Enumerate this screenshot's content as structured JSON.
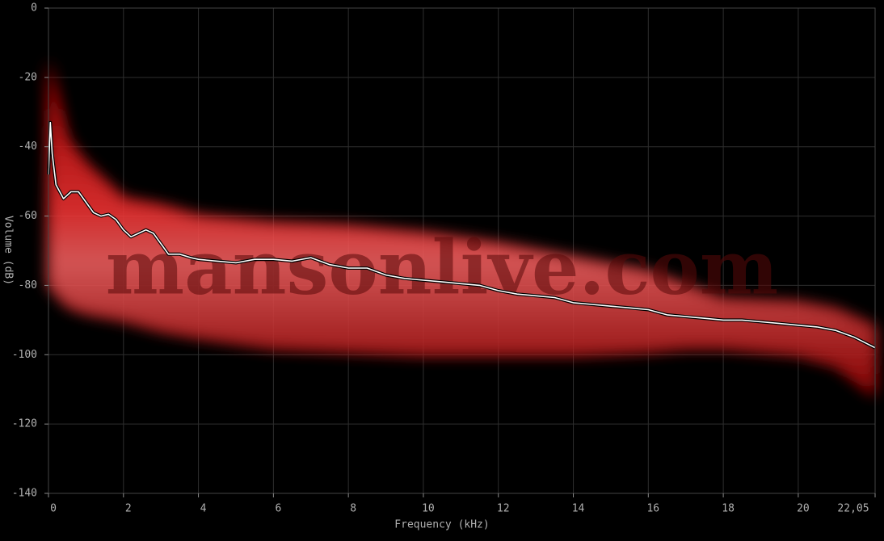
{
  "chart_data": {
    "type": "line",
    "x_label": "Frequency (kHz)",
    "y_label": "Volume (dB)",
    "annotation": "mansonlive.com",
    "xlim": [
      0,
      22.05
    ],
    "ylim": [
      -140,
      0
    ],
    "xticks": [
      0,
      2,
      4,
      6,
      8,
      10,
      12,
      14,
      16,
      18,
      20,
      {
        "value": 22.05,
        "label": "22,05"
      }
    ],
    "yticks": [
      0,
      -20,
      -40,
      -60,
      -80,
      -100,
      -120,
      -140
    ],
    "grid": true,
    "band": {
      "color": "#d00000",
      "x": [
        0,
        0.5,
        1,
        2,
        3,
        4,
        6,
        8,
        10,
        12,
        14,
        16,
        17,
        18,
        20,
        21,
        22.05
      ],
      "upper": [
        -15,
        -38,
        -45,
        -55,
        -57,
        -60,
        -62,
        -63,
        -65,
        -68,
        -72,
        -76,
        -80,
        -84,
        -85,
        -87,
        -92
      ],
      "lower": [
        -80,
        -86,
        -88,
        -90,
        -93,
        -95,
        -98,
        -99,
        -100,
        -100,
        -100,
        -99,
        -98,
        -98,
        -100,
        -103,
        -112
      ]
    },
    "series": [
      {
        "color": "#ffffff",
        "x": [
          0,
          0.05,
          0.1,
          0.2,
          0.4,
          0.6,
          0.8,
          1.0,
          1.2,
          1.4,
          1.6,
          1.8,
          2.0,
          2.2,
          2.4,
          2.6,
          2.8,
          3.0,
          3.2,
          3.5,
          3.8,
          4.0,
          4.5,
          5.0,
          5.5,
          6.0,
          6.5,
          7.0,
          7.5,
          8.0,
          8.5,
          9.0,
          9.5,
          10,
          10.5,
          11,
          11.5,
          12,
          12.5,
          13,
          13.5,
          14,
          14.5,
          15,
          15.5,
          16,
          16.5,
          17,
          17.5,
          18,
          18.5,
          19,
          19.5,
          20,
          20.5,
          21,
          21.5,
          22.05
        ],
        "values": [
          -48,
          -33,
          -42,
          -51,
          -55,
          -53,
          -53,
          -56,
          -59,
          -60,
          -59.5,
          -61,
          -64,
          -66,
          -65,
          -64,
          -65,
          -68,
          -71,
          -71,
          -72,
          -72.5,
          -73,
          -73.5,
          -72.5,
          -72.5,
          -73,
          -72,
          -74,
          -75,
          -75,
          -77,
          -78,
          -78.5,
          -79,
          -79.5,
          -80,
          -81.5,
          -82.5,
          -83,
          -83.5,
          -85,
          -85.5,
          -86,
          -86.5,
          -87,
          -88.5,
          -89,
          -89.5,
          -90,
          -90,
          -90.5,
          -91,
          -91.5,
          -92,
          -93,
          -95,
          -98
        ]
      }
    ]
  }
}
